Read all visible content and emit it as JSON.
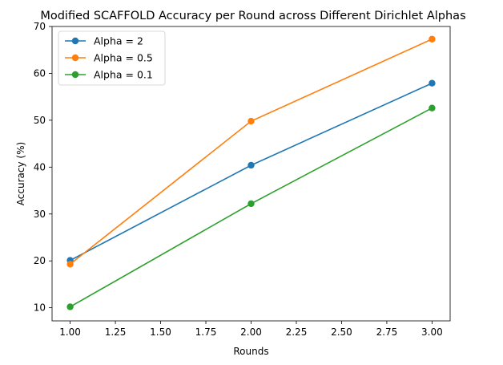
{
  "chart_data": {
    "type": "line",
    "title": "Modified SCAFFOLD Accuracy per Round across Different Dirichlet Alphas",
    "xlabel": "Rounds",
    "ylabel": "Accuracy (%)",
    "xlim": [
      0.9,
      3.1
    ],
    "ylim": [
      7.2,
      70.0
    ],
    "xticks": [
      1.0,
      1.25,
      1.5,
      1.75,
      2.0,
      2.25,
      2.5,
      2.75,
      3.0
    ],
    "xtick_labels": [
      "1.00",
      "1.25",
      "1.50",
      "1.75",
      "2.00",
      "2.25",
      "2.50",
      "2.75",
      "3.00"
    ],
    "yticks": [
      10,
      20,
      30,
      40,
      50,
      60,
      70
    ],
    "ytick_labels": [
      "10",
      "20",
      "30",
      "40",
      "50",
      "60",
      "70"
    ],
    "grid": false,
    "legend_position": "top-left",
    "x": [
      1,
      2,
      3
    ],
    "series": [
      {
        "name": "Alpha = 2",
        "color": "#1f77b4",
        "marker": "circle",
        "values": [
          20.1,
          40.4,
          57.9
        ]
      },
      {
        "name": "Alpha = 0.5",
        "color": "#ff7f0e",
        "marker": "circle",
        "values": [
          19.3,
          49.8,
          67.3
        ]
      },
      {
        "name": "Alpha = 0.1",
        "color": "#2ca02c",
        "marker": "circle",
        "values": [
          10.2,
          32.2,
          52.6
        ]
      }
    ]
  }
}
